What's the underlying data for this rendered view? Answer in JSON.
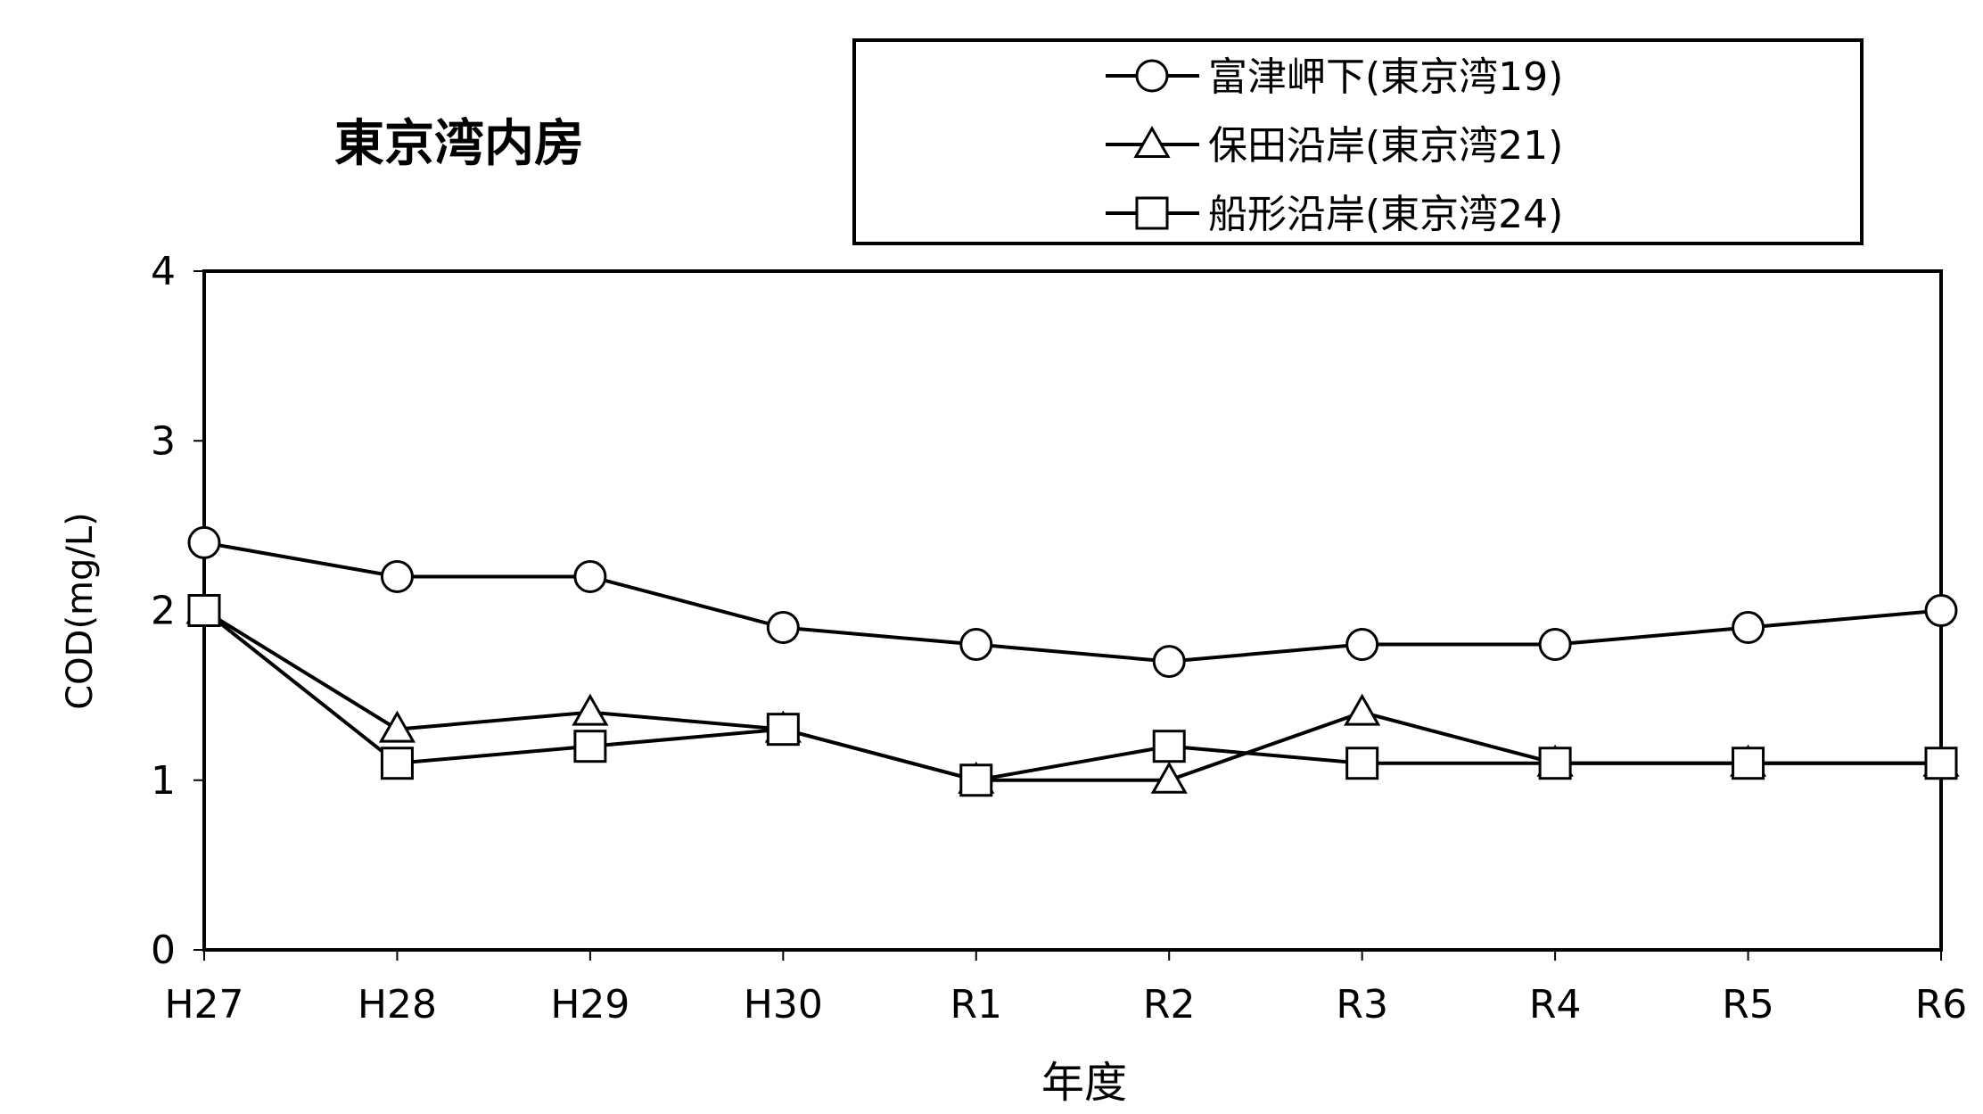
{
  "chart_data": {
    "type": "line",
    "title": "東京湾内房",
    "xlabel": "年度",
    "ylabel": "COD(mg/L)",
    "categories": [
      "H27",
      "H28",
      "H29",
      "H30",
      "R1",
      "R2",
      "R3",
      "R4",
      "R5",
      "R6"
    ],
    "ylim": [
      0,
      4
    ],
    "yticks": [
      "0",
      "1",
      "2",
      "3",
      "4"
    ],
    "legend_position": "top-right",
    "grid": false,
    "series": [
      {
        "name": "富津岬下(東京湾19)",
        "marker": "circle",
        "values": [
          2.4,
          2.2,
          2.2,
          1.9,
          1.8,
          1.7,
          1.8,
          1.8,
          1.9,
          2.0
        ]
      },
      {
        "name": "保田沿岸(東京湾21)",
        "marker": "triangle",
        "values": [
          2.0,
          1.3,
          1.4,
          1.3,
          1.0,
          1.0,
          1.4,
          1.1,
          1.1,
          1.1
        ]
      },
      {
        "name": "船形沿岸(東京湾24)",
        "marker": "square",
        "values": [
          2.0,
          1.1,
          1.2,
          1.3,
          1.0,
          1.2,
          1.1,
          1.1,
          1.1,
          1.1
        ]
      }
    ]
  }
}
